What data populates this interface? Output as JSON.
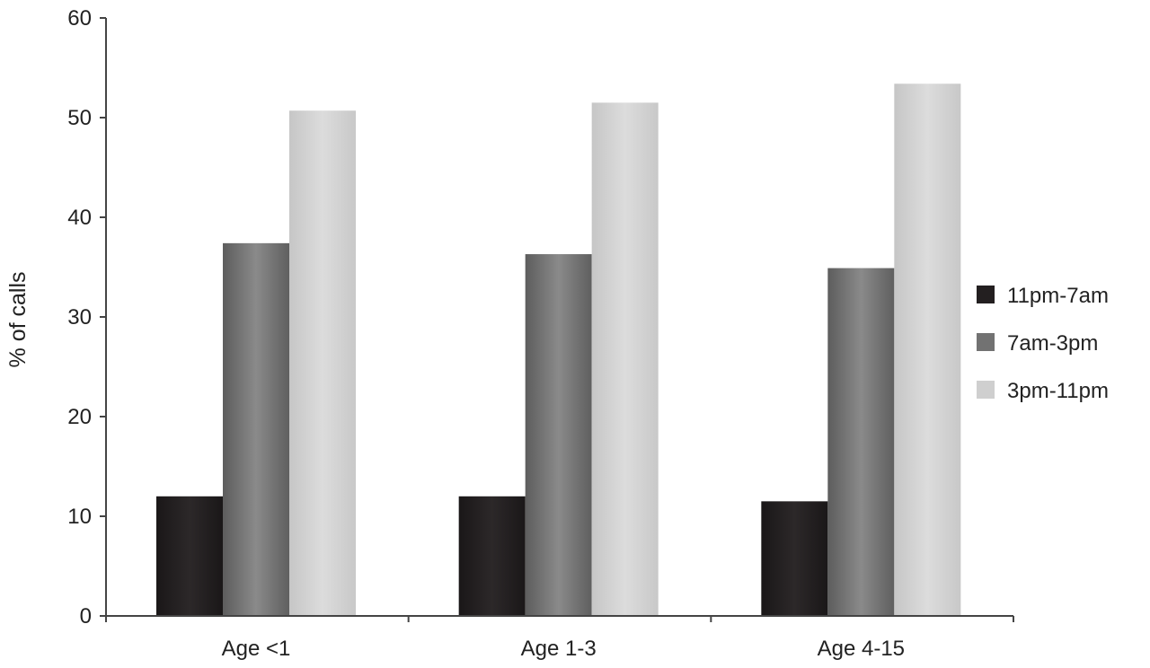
{
  "chart_data": {
    "type": "bar",
    "title": "",
    "xlabel": "",
    "ylabel": "% of calls",
    "ylim": [
      0,
      60
    ],
    "yticks": [
      "0",
      "10",
      "20",
      "30",
      "40",
      "50",
      "60"
    ],
    "categories": [
      "Age <1",
      "Age 1-3",
      "Age 4-15"
    ],
    "series": [
      {
        "name": "11pm-7am",
        "color": "#231f20",
        "values": [
          12.0,
          12.0,
          11.5
        ]
      },
      {
        "name": "7am-3pm",
        "color": "#727272",
        "values": [
          37.4,
          36.3,
          34.9
        ]
      },
      {
        "name": "3pm-11pm",
        "color": "#cfcfcf",
        "values": [
          50.7,
          51.5,
          53.4
        ]
      }
    ],
    "legend_position": "right",
    "grid": false
  }
}
